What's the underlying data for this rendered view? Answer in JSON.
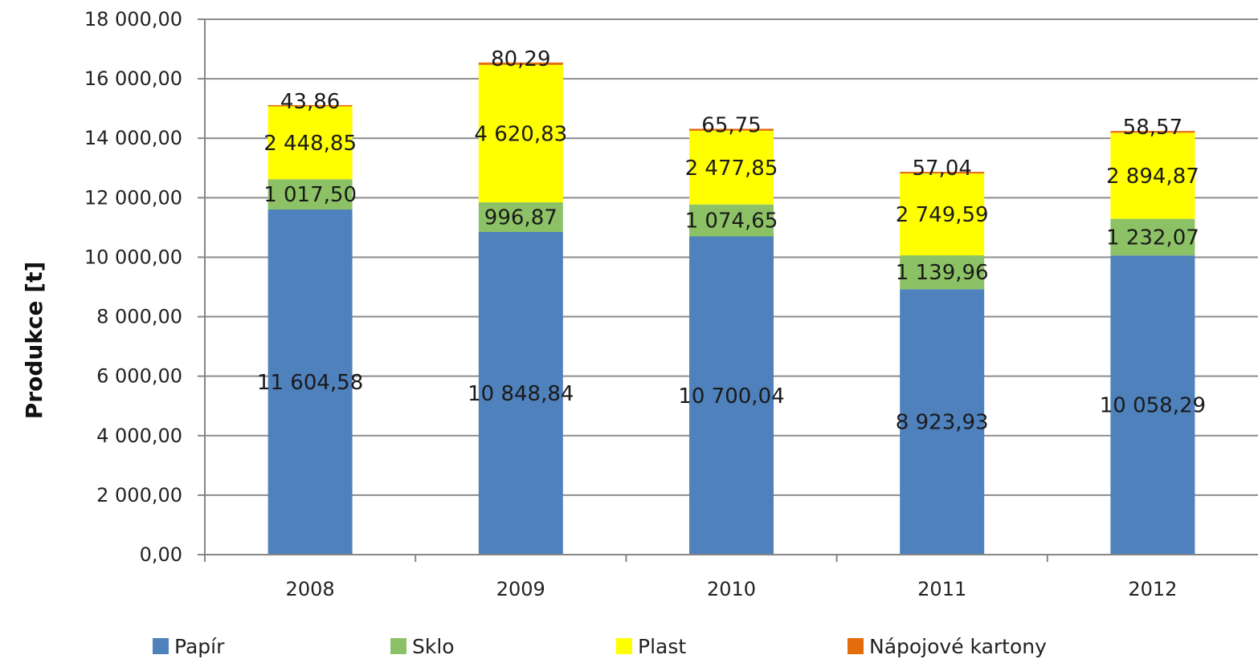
{
  "chart_data": {
    "type": "bar",
    "stacked": true,
    "categories": [
      "2008",
      "2009",
      "2010",
      "2011",
      "2012"
    ],
    "series": [
      {
        "name": "Papír",
        "color": "#4f81bd",
        "values": [
          11604.58,
          10848.84,
          10700.04,
          8923.93,
          10058.29
        ],
        "labels": [
          "11 604,58",
          "10 848,84",
          "10 700,04",
          "8 923,93",
          "10 058,29"
        ]
      },
      {
        "name": "Sklo",
        "color": "#8cc265",
        "values": [
          1017.5,
          996.87,
          1074.65,
          1139.96,
          1232.07
        ],
        "labels": [
          "1 017,50",
          "996,87",
          "1 074,65",
          "1 139,96",
          "1 232,07"
        ]
      },
      {
        "name": "Plast",
        "color": "#ffff00",
        "values": [
          2448.85,
          4620.83,
          2477.85,
          2749.59,
          2894.87
        ],
        "labels": [
          "2 448,85",
          "4 620,83",
          "2 477,85",
          "2 749,59",
          "2 894,87"
        ]
      },
      {
        "name": "Nápojové kartony",
        "color": "#e46c0a",
        "values": [
          43.86,
          80.29,
          65.75,
          57.04,
          58.57
        ],
        "labels": [
          "43,86",
          "80,29",
          "65,75",
          "57,04",
          "58,57"
        ]
      }
    ],
    "ylabel": "Produkce [t]",
    "xlabel": "",
    "ylim": [
      0,
      18000
    ],
    "yticks": [
      {
        "value": 0,
        "label": "0,00"
      },
      {
        "value": 2000,
        "label": "2 000,00"
      },
      {
        "value": 4000,
        "label": "4 000,00"
      },
      {
        "value": 6000,
        "label": "6 000,00"
      },
      {
        "value": 8000,
        "label": "8 000,00"
      },
      {
        "value": 10000,
        "label": "10 000,00"
      },
      {
        "value": 12000,
        "label": "12 000,00"
      },
      {
        "value": 14000,
        "label": "14 000,00"
      },
      {
        "value": 16000,
        "label": "16 000,00"
      },
      {
        "value": 18000,
        "label": "18 000,00"
      }
    ],
    "grid": true,
    "legend_position": "bottom",
    "colors": {
      "gridline": "#8c8c8c",
      "axis": "#868686"
    }
  }
}
